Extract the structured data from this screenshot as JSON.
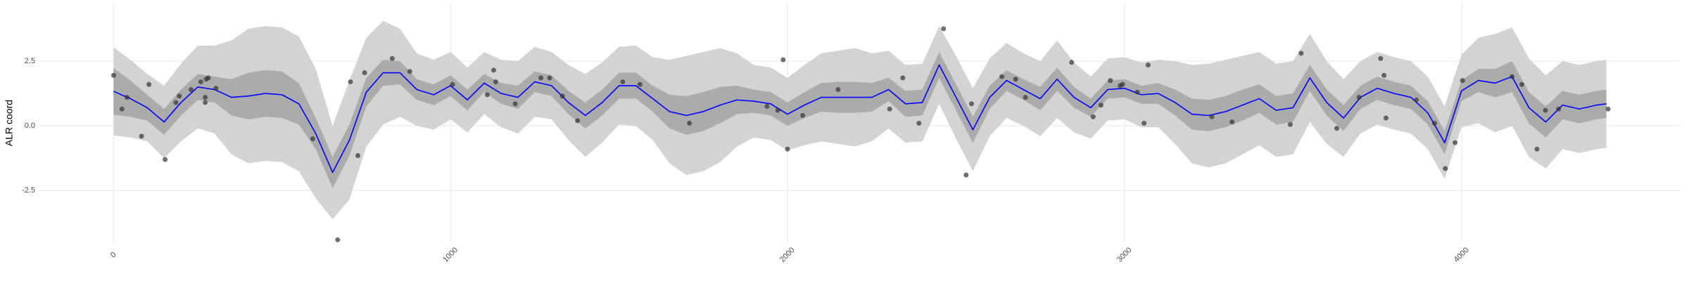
{
  "chart_data": {
    "type": "line",
    "y_label": "ALR coord",
    "x": [
      0,
      50,
      100,
      150,
      200,
      250,
      300,
      350,
      400,
      450,
      500,
      550,
      600,
      650,
      700,
      750,
      800,
      850,
      900,
      950,
      1000,
      1050,
      1100,
      1150,
      1200,
      1250,
      1300,
      1350,
      1400,
      1450,
      1500,
      1550,
      1600,
      1650,
      1700,
      1750,
      1800,
      1850,
      1900,
      1950,
      2000,
      2050,
      2100,
      2150,
      2200,
      2250,
      2300,
      2350,
      2400,
      2450,
      2500,
      2550,
      2600,
      2650,
      2700,
      2750,
      2800,
      2850,
      2900,
      2950,
      3000,
      3050,
      3100,
      3150,
      3200,
      3250,
      3300,
      3350,
      3400,
      3450,
      3500,
      3550,
      3600,
      3650,
      3700,
      3750,
      3800,
      3850,
      3900,
      3950,
      4000,
      4050,
      4100,
      4150,
      4200,
      4250,
      4300,
      4350,
      4400,
      4430
    ],
    "mean": {
      "color": "#0000ff",
      "values": [
        1.33,
        1.05,
        0.7,
        0.15,
        0.9,
        1.5,
        1.4,
        1.1,
        1.15,
        1.25,
        1.2,
        0.85,
        -0.3,
        -1.8,
        -0.55,
        1.3,
        2.05,
        2.05,
        1.4,
        1.2,
        1.55,
        1.0,
        1.65,
        1.25,
        1.1,
        1.7,
        1.55,
        0.9,
        0.4,
        0.9,
        1.55,
        1.55,
        1.05,
        0.55,
        0.4,
        0.55,
        0.8,
        1.0,
        0.95,
        0.85,
        0.45,
        0.8,
        1.1,
        1.1,
        1.1,
        1.1,
        1.4,
        0.85,
        0.9,
        2.35,
        1.1,
        -0.15,
        1.1,
        1.75,
        1.4,
        1.05,
        1.8,
        1.1,
        0.7,
        1.4,
        1.45,
        1.2,
        1.25,
        0.9,
        0.45,
        0.4,
        0.55,
        0.8,
        1.05,
        0.6,
        0.7,
        1.85,
        0.9,
        0.3,
        1.1,
        1.45,
        1.25,
        1.1,
        0.5,
        -0.65,
        1.35,
        1.75,
        1.65,
        1.9,
        0.7,
        0.15,
        0.8,
        0.65,
        0.8,
        0.85
      ]
    },
    "bands": [
      {
        "color": "#d3d3d3",
        "lower": [
          -0.37,
          -0.45,
          -0.6,
          -1.25,
          -0.6,
          -0.1,
          -0.3,
          -1.1,
          -1.45,
          -1.35,
          -1.4,
          -1.75,
          -2.8,
          -3.6,
          -2.85,
          -0.8,
          0.05,
          0.35,
          0.0,
          -0.15,
          0.25,
          -0.25,
          0.45,
          -0.05,
          -0.3,
          0.35,
          0.25,
          -0.55,
          -1.2,
          -0.65,
          0.05,
          0.0,
          -0.55,
          -1.45,
          -1.9,
          -1.75,
          -1.4,
          -0.8,
          -0.45,
          -0.55,
          -0.95,
          -0.75,
          -0.6,
          -0.7,
          -0.8,
          -0.6,
          -0.1,
          -0.65,
          -0.6,
          0.85,
          -0.5,
          -1.75,
          -0.4,
          0.3,
          0.0,
          -0.4,
          0.3,
          -0.25,
          -0.5,
          0.2,
          0.25,
          -0.05,
          -0.05,
          -0.7,
          -1.45,
          -1.6,
          -1.45,
          -1.1,
          -0.75,
          -1.2,
          -1.1,
          0.15,
          -0.7,
          -1.2,
          -0.3,
          0.05,
          -0.15,
          -0.3,
          -0.9,
          -2.05,
          -0.05,
          0.1,
          -0.25,
          0.0,
          -1.2,
          -1.65,
          -0.9,
          -1.05,
          -0.9,
          -0.85
        ],
        "upper": [
          3.03,
          2.55,
          2.0,
          1.55,
          2.4,
          3.1,
          3.1,
          3.3,
          3.75,
          3.85,
          3.8,
          3.45,
          2.2,
          0.0,
          1.75,
          3.4,
          4.05,
          3.75,
          2.8,
          2.55,
          2.85,
          2.25,
          2.85,
          2.55,
          2.5,
          3.05,
          2.85,
          2.35,
          2.0,
          2.45,
          3.05,
          3.1,
          2.65,
          2.55,
          2.7,
          2.85,
          3.0,
          2.8,
          2.35,
          2.25,
          1.85,
          2.35,
          2.8,
          2.9,
          3.0,
          2.8,
          2.9,
          2.35,
          2.4,
          3.85,
          2.7,
          1.45,
          2.6,
          3.2,
          2.8,
          2.5,
          3.3,
          2.45,
          1.9,
          2.6,
          2.65,
          2.45,
          2.55,
          2.5,
          2.35,
          2.4,
          2.55,
          2.7,
          2.85,
          2.4,
          2.5,
          3.55,
          2.5,
          1.8,
          2.5,
          2.85,
          2.65,
          2.5,
          1.9,
          0.75,
          2.75,
          3.4,
          3.55,
          3.8,
          2.6,
          1.95,
          2.5,
          2.35,
          2.5,
          2.55
        ]
      },
      {
        "color": "#ababab",
        "lower": [
          0.43,
          0.35,
          0.2,
          -0.35,
          0.4,
          1.0,
          0.9,
          0.4,
          0.25,
          0.35,
          0.3,
          0.05,
          -0.9,
          -2.4,
          -1.15,
          0.75,
          1.55,
          1.6,
          1.0,
          0.8,
          1.15,
          0.6,
          1.3,
          0.85,
          0.65,
          1.3,
          1.15,
          0.45,
          -0.1,
          0.4,
          1.05,
          1.05,
          0.55,
          -0.1,
          -0.35,
          -0.2,
          0.1,
          0.45,
          0.5,
          0.4,
          0.0,
          0.3,
          0.55,
          0.5,
          0.5,
          0.55,
          0.95,
          0.35,
          0.4,
          1.85,
          0.6,
          -0.65,
          0.65,
          1.35,
          1.0,
          0.6,
          1.35,
          0.7,
          0.35,
          1.05,
          1.1,
          0.85,
          0.85,
          0.4,
          -0.15,
          -0.2,
          -0.05,
          0.2,
          0.5,
          0.05,
          0.15,
          1.35,
          0.4,
          -0.2,
          0.65,
          1.0,
          0.8,
          0.65,
          0.05,
          -1.1,
          0.95,
          1.3,
          1.1,
          1.3,
          0.1,
          -0.45,
          0.25,
          0.1,
          0.25,
          0.3
        ],
        "upper": [
          2.23,
          1.75,
          1.2,
          0.65,
          1.4,
          2.0,
          1.9,
          1.8,
          2.05,
          2.15,
          2.1,
          1.65,
          0.3,
          -1.2,
          0.05,
          1.85,
          2.55,
          2.5,
          1.8,
          1.6,
          1.95,
          1.4,
          2.0,
          1.65,
          1.55,
          2.1,
          1.95,
          1.35,
          0.9,
          1.4,
          2.05,
          2.05,
          1.55,
          1.2,
          1.15,
          1.3,
          1.5,
          1.55,
          1.4,
          1.3,
          0.9,
          1.3,
          1.65,
          1.7,
          1.7,
          1.65,
          1.85,
          1.35,
          1.4,
          2.85,
          1.6,
          0.35,
          1.55,
          2.15,
          1.8,
          1.5,
          2.25,
          1.5,
          1.05,
          1.75,
          1.8,
          1.55,
          1.65,
          1.4,
          1.05,
          1.0,
          1.15,
          1.4,
          1.6,
          1.15,
          1.25,
          2.35,
          1.4,
          0.8,
          1.55,
          1.9,
          1.7,
          1.55,
          0.95,
          -0.2,
          1.75,
          2.2,
          2.2,
          2.5,
          1.3,
          0.75,
          1.35,
          1.2,
          1.35,
          1.4
        ]
      }
    ],
    "points": {
      "color": "#333333",
      "x": [
        0,
        25,
        40,
        83,
        105,
        153,
        185,
        195,
        230,
        259,
        272,
        275,
        281,
        272,
        304,
        591,
        665,
        703,
        725,
        745,
        827,
        879,
        1006,
        1109,
        1128,
        1134,
        1192,
        1268,
        1294,
        1332,
        1377,
        1511,
        1562,
        1709,
        1939,
        1971,
        1987,
        2000,
        2045,
        2150,
        2303,
        2342,
        2390,
        2463,
        2530,
        2546,
        2636,
        2677,
        2706,
        2843,
        2907,
        2930,
        2958,
        2987,
        2994,
        3038,
        3058,
        3070,
        3259,
        3319,
        3492,
        3524,
        3630,
        3696,
        3760,
        3770,
        3776,
        3866,
        3920,
        3952,
        3981,
        4003,
        4150,
        4179,
        4224,
        4249,
        4288,
        4435
      ],
      "values": [
        1.95,
        0.65,
        1.1,
        -0.4,
        1.6,
        -1.3,
        0.9,
        1.15,
        1.4,
        1.7,
        1.1,
        1.8,
        1.85,
        0.9,
        1.45,
        -0.5,
        -4.4,
        1.7,
        -1.15,
        2.05,
        2.6,
        2.1,
        1.6,
        1.2,
        2.15,
        1.7,
        0.85,
        1.85,
        1.85,
        1.15,
        0.2,
        1.7,
        1.6,
        0.1,
        0.75,
        0.6,
        2.55,
        -0.9,
        0.4,
        1.4,
        0.65,
        1.85,
        0.1,
        3.75,
        -1.9,
        0.85,
        1.9,
        1.8,
        1.1,
        2.45,
        0.35,
        0.8,
        1.75,
        1.55,
        1.6,
        1.3,
        0.1,
        2.35,
        0.35,
        0.15,
        0.05,
        2.8,
        -0.1,
        1.1,
        2.6,
        1.95,
        0.3,
        1.0,
        0.1,
        -1.65,
        -0.65,
        1.75,
        1.9,
        1.6,
        -0.9,
        0.6,
        0.65,
        0.65
      ]
    },
    "xlim": [
      -220,
      4650
    ],
    "ylim": [
      -4.5,
      4.75
    ],
    "xticks": [
      0,
      1000,
      2000,
      3000,
      4000
    ],
    "yticks": [
      -2.5,
      {
        "value": 0,
        "label": "0.0"
      },
      2.5
    ],
    "grid": true
  }
}
